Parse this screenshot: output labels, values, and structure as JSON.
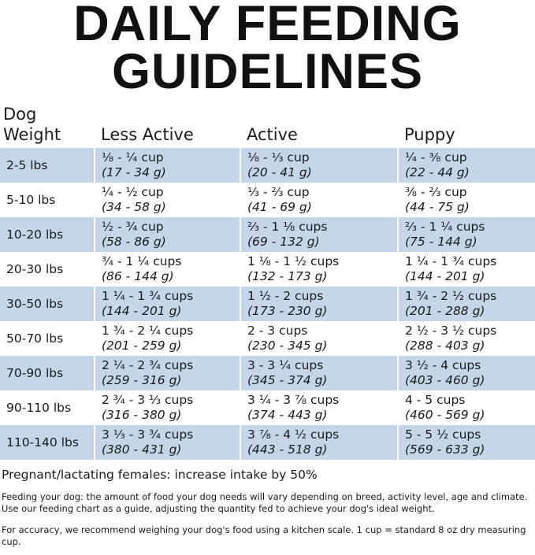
{
  "title": [
    "DAILY FEEDING",
    "GUIDELINES"
  ],
  "table": {
    "columns": [
      "Dog Weight",
      "Less Active",
      "Active",
      "Puppy"
    ],
    "rows": [
      [
        "2-5 lbs",
        {
          "cups": "⅛ - ¼ cup",
          "grams": "(17 - 34 g)"
        },
        {
          "cups": "⅛ - ⅓ cup",
          "grams": "(20 - 41 g)"
        },
        {
          "cups": "¼ - ⅜ cup",
          "grams": "(22 - 44 g)"
        }
      ],
      [
        "5-10 lbs",
        {
          "cups": "¼ - ½ cup",
          "grams": "(34 - 58 g)"
        },
        {
          "cups": "⅓ - ⅔ cup",
          "grams": "(41 - 69 g)"
        },
        {
          "cups": "⅜ - ⅔ cup",
          "grams": "(44 - 75 g)"
        }
      ],
      [
        "10-20 lbs",
        {
          "cups": "½ - ¾ cup",
          "grams": "(58 - 86 g)"
        },
        {
          "cups": "⅔ - 1 ⅛ cups",
          "grams": "(69 - 132 g)"
        },
        {
          "cups": "⅔ - 1 ¼ cups",
          "grams": "(75 - 144 g)"
        }
      ],
      [
        "20-30 lbs",
        {
          "cups": "¾ - 1 ¼ cups",
          "grams": "(86 - 144 g)"
        },
        {
          "cups": "1 ⅛ - 1 ½ cups",
          "grams": "(132 - 173 g)"
        },
        {
          "cups": "1 ¼ - 1 ¾ cups",
          "grams": "(144 - 201 g)"
        }
      ],
      [
        "30-50 lbs",
        {
          "cups": "1 ¼ - 1 ¾ cups",
          "grams": "(144 - 201 g)"
        },
        {
          "cups": "1 ½ - 2 cups",
          "grams": "(173 - 230 g)"
        },
        {
          "cups": "1 ¾ - 2 ½ cups",
          "grams": "(201 - 288 g)"
        }
      ],
      [
        "50-70 lbs",
        {
          "cups": "1 ¾ - 2 ¼ cups",
          "grams": "(201 - 259 g)"
        },
        {
          "cups": "2 - 3 cups",
          "grams": "(230 - 345 g)"
        },
        {
          "cups": "2 ½ - 3 ½ cups",
          "grams": "(288 - 403 g)"
        }
      ],
      [
        "70-90 lbs",
        {
          "cups": "2 ¼ - 2 ¾ cups",
          "grams": "(259 - 316 g)"
        },
        {
          "cups": "3 - 3 ¼ cups",
          "grams": "(345 - 374 g)"
        },
        {
          "cups": "3 ½ - 4 cups",
          "grams": "(403 - 460 g)"
        }
      ],
      [
        "90-110 lbs",
        {
          "cups": "2 ¾ - 3 ⅓ cups",
          "grams": "(316 - 380 g)"
        },
        {
          "cups": "3 ¼ - 3 ⅞ cups",
          "grams": "(374 - 443 g)"
        },
        {
          "cups": "4 - 5 cups",
          "grams": "(460 - 569 g)"
        }
      ],
      [
        "110-140 lbs",
        {
          "cups": "3 ⅓ - 3 ¾ cups",
          "grams": "(380 - 431 g)"
        },
        {
          "cups": "3 ⅞ - 4 ½ cups",
          "grams": "(443 - 518 g)"
        },
        {
          "cups": "5 - 5 ½ cups",
          "grams": "(569 - 633 g)"
        }
      ]
    ]
  },
  "note": "Pregnant/lactating females: increase intake by 50%",
  "paragraphs": [
    "Feeding your dog: the amount of food your dog needs will vary depending on breed, activity level, age and climate. Use our feeding chart as a guide, adjusting the quantity fed to achieve your dog's ideal weight.",
    "For accuracy, we recommend weighing your dog's food using a kitchen scale. 1 cup = standard 8 oz dry measuring cup."
  ]
}
